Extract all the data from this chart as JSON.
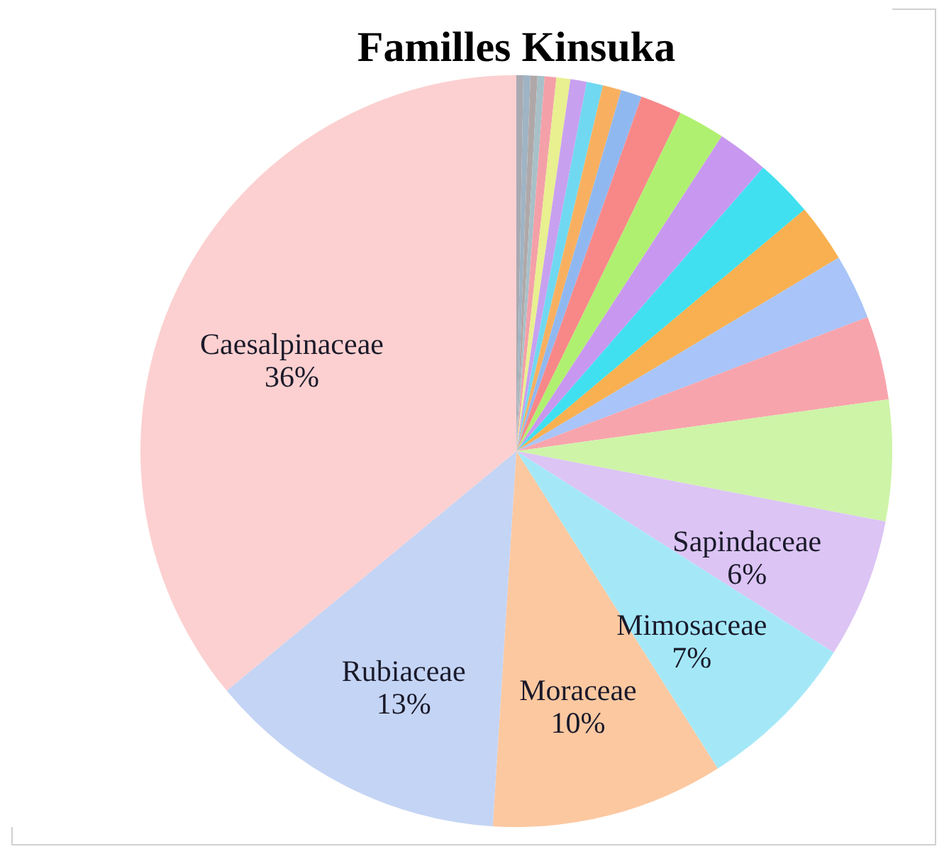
{
  "chart_data": {
    "type": "pie",
    "title": "Familles Kinsuka",
    "categories": [
      null,
      null,
      null,
      null,
      null,
      null,
      null,
      null,
      null,
      null,
      null,
      null,
      null,
      null,
      null,
      null,
      null,
      null,
      "Sapindaceae",
      "Mimosaceae",
      "Moraceae",
      "Rubiaceae",
      "Caesalpinaceae"
    ],
    "values": [
      0.3,
      0.3,
      0.3,
      0.3,
      0.5,
      0.6,
      0.7,
      0.7,
      0.8,
      0.9,
      1.8,
      2.0,
      2.2,
      2.5,
      2.5,
      2.8,
      3.6,
      5.2,
      6,
      7,
      10,
      13,
      36
    ],
    "value_labels": [
      null,
      null,
      null,
      null,
      null,
      null,
      null,
      null,
      null,
      null,
      null,
      null,
      null,
      null,
      null,
      null,
      null,
      null,
      "6%",
      "7%",
      "10%",
      "13%",
      "36%"
    ],
    "colors": [
      "#a9a9b0",
      "#9fb4c4",
      "#b0a8a8",
      "#a8c0c8",
      "#f4a0a8",
      "#e8f090",
      "#c8a0f0",
      "#70d8f0",
      "#f8b060",
      "#90b8f0",
      "#f88888",
      "#b0f070",
      "#c898f0",
      "#40e0f0",
      "#f8b050",
      "#a8c4f8",
      "#f8a4ac",
      "#cef4a8",
      "#dcc4f4",
      "#a4e8f8",
      "#fcc8a0",
      "#c4d4f4",
      "#fcd0d0"
    ]
  }
}
